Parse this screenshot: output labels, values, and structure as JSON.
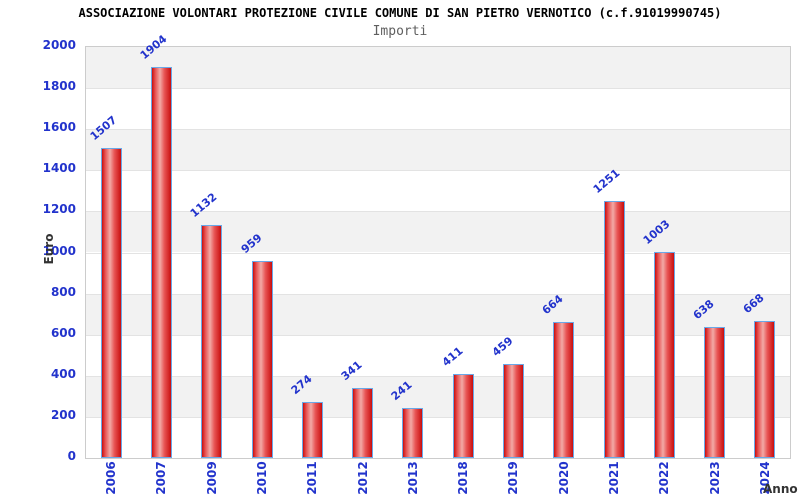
{
  "header": {
    "title": "ASSOCIAZIONE VOLONTARI PROTEZIONE CIVILE COMUNE DI SAN PIETRO VERNOTICO (c.f.91019990745)",
    "subtitle": "Importi"
  },
  "axes": {
    "y_label": "Euro",
    "x_label": "Anno",
    "y_ticks": [
      "0",
      "200",
      "400",
      "600",
      "800",
      "1000",
      "1200",
      "1400",
      "1600",
      "1800",
      "2000"
    ]
  },
  "chart_data": {
    "type": "bar",
    "title": "ASSOCIAZIONE VOLONTARI PROTEZIONE CIVILE COMUNE DI SAN PIETRO VERNOTICO (c.f.91019990745)",
    "subtitle": "Importi",
    "xlabel": "Anno",
    "ylabel": "Euro",
    "categories": [
      "2006",
      "2007",
      "2009",
      "2010",
      "2011",
      "2012",
      "2013",
      "2018",
      "2019",
      "2020",
      "2021",
      "2022",
      "2023",
      "2024"
    ],
    "values": [
      1507,
      1904,
      1132,
      959,
      274,
      341,
      241,
      411,
      459,
      664,
      1251,
      1003,
      638,
      668
    ],
    "ylim": [
      0,
      2000
    ],
    "y_tick_step": 200,
    "grid": "horizontal bands alternating every 200 units, gray band at top",
    "legend": "none",
    "value_labels": "above each bar, rotated diagonally"
  },
  "colors": {
    "title": "#000000",
    "subtitle": "#5f5f5f",
    "axis_text": "#2233cc",
    "value_label": "#2233cc",
    "axis_title": "#333333",
    "band_gray": "#f2f2f2",
    "band_white": "#ffffff",
    "plot_border": "#cccccc",
    "gridline": "#e3e3e3",
    "bar_border": "#69a8e8",
    "bar_dark": "#c90f0f",
    "bar_mid": "#e85555",
    "bar_light": "#f2aaa6"
  }
}
